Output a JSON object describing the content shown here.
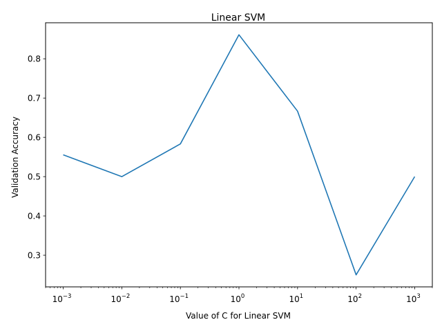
{
  "chart_data": {
    "type": "line",
    "title": "Linear SVM",
    "xlabel": "Value of C for Linear SVM",
    "ylabel": "Validation Accuracy",
    "xscale": "log",
    "x": [
      0.001,
      0.01,
      0.1,
      1,
      10,
      100,
      1000
    ],
    "series": [
      {
        "values": [
          0.5556,
          0.5,
          0.5833,
          0.8611,
          0.6667,
          0.25,
          0.5
        ]
      }
    ],
    "xticks": [
      {
        "value": 0.001,
        "base": "10",
        "exp": "−3"
      },
      {
        "value": 0.01,
        "base": "10",
        "exp": "−2"
      },
      {
        "value": 0.1,
        "base": "10",
        "exp": "−1"
      },
      {
        "value": 1,
        "base": "10",
        "exp": "0"
      },
      {
        "value": 10,
        "base": "10",
        "exp": "1"
      },
      {
        "value": 100,
        "base": "10",
        "exp": "2"
      },
      {
        "value": 1000,
        "base": "10",
        "exp": "3"
      }
    ],
    "yticks": [
      "0.3",
      "0.4",
      "0.5",
      "0.6",
      "0.7",
      "0.8"
    ],
    "xlim": [
      0.0005,
      2000
    ],
    "ylim": [
      0.2194,
      0.8917
    ],
    "grid": false,
    "line_color": "#1f77b4"
  }
}
